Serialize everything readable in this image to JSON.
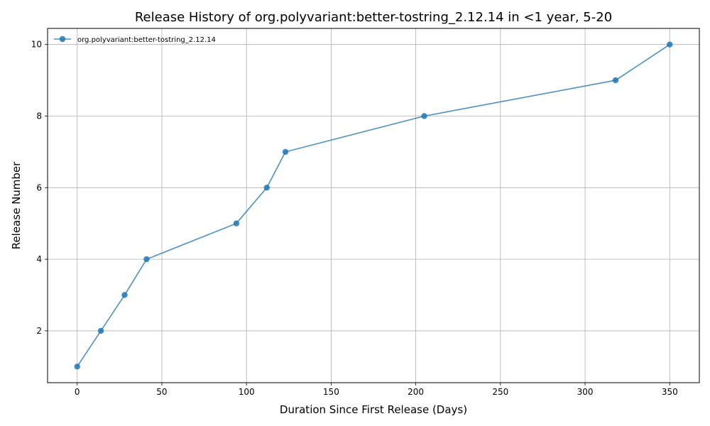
{
  "chart_data": {
    "type": "line",
    "title": "Release History of org.polyvariant:better-tostring_2.12.14 in <1 year, 5-20",
    "xlabel": "Duration Since First Release (Days)",
    "ylabel": "Release Number",
    "xlim": [
      -17.5,
      367.5
    ],
    "ylim": [
      0.55,
      10.45
    ],
    "xticks": [
      0,
      50,
      100,
      150,
      200,
      250,
      300,
      350
    ],
    "yticks": [
      2,
      4,
      6,
      8,
      10
    ],
    "grid": true,
    "legend_position": "top-left",
    "series": [
      {
        "name": "org.polyvariant:better-tostring_2.12.14",
        "color": "#1f77b4",
        "x": [
          0,
          14,
          28,
          41,
          94,
          112,
          123,
          205,
          318,
          350
        ],
        "y": [
          1,
          2,
          3,
          4,
          5,
          6,
          7,
          8,
          9,
          10
        ]
      }
    ]
  }
}
